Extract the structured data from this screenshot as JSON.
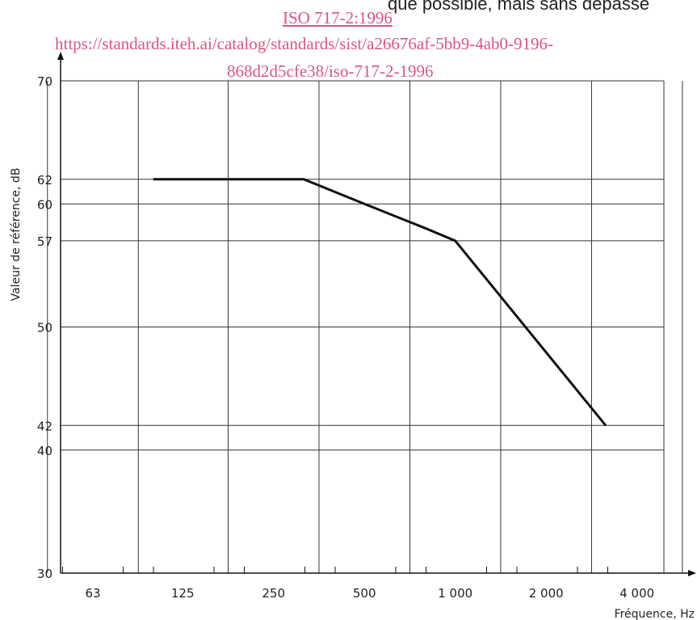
{
  "header": {
    "top_text": "que possible, mais sans dépasse",
    "watermark_title": "ISO 717-2:1996",
    "watermark_url_line1": "https://standards.iteh.ai/catalog/standards/sist/a26676af-5bb9-4ab0-9196-",
    "watermark_url_line2": "868d2d5cfe38/iso-717-2-1996"
  },
  "chart_data": {
    "type": "line",
    "xlabel": "Fréquence, Hz",
    "ylabel": "Valeur de référence, dB",
    "x_scale": "log",
    "x_ticks": [
      {
        "value": 63,
        "label": "63"
      },
      {
        "value": 125,
        "label": "125"
      },
      {
        "value": 250,
        "label": "250"
      },
      {
        "value": 500,
        "label": "500"
      },
      {
        "value": 1000,
        "label": "1 000"
      },
      {
        "value": 2000,
        "label": "2 000"
      },
      {
        "value": 4000,
        "label": "4 000"
      }
    ],
    "y_ticks": [
      {
        "value": 30,
        "label": "30"
      },
      {
        "value": 40,
        "label": "40"
      },
      {
        "value": 42,
        "label": "42"
      },
      {
        "value": 50,
        "label": "50"
      },
      {
        "value": 57,
        "label": "57"
      },
      {
        "value": 60,
        "label": "60"
      },
      {
        "value": 62,
        "label": "62"
      },
      {
        "value": 70,
        "label": "70"
      }
    ],
    "ylim": [
      30,
      70
    ],
    "grid": true,
    "series": [
      {
        "points": [
          {
            "x": 100,
            "y": 62
          },
          {
            "x": 315,
            "y": 62
          },
          {
            "x": 500,
            "y": 60
          },
          {
            "x": 800,
            "y": 58
          },
          {
            "x": 1000,
            "y": 57
          },
          {
            "x": 3150,
            "y": 42
          }
        ]
      }
    ],
    "colors": {
      "line": "#111111",
      "grid": "#333333"
    }
  }
}
